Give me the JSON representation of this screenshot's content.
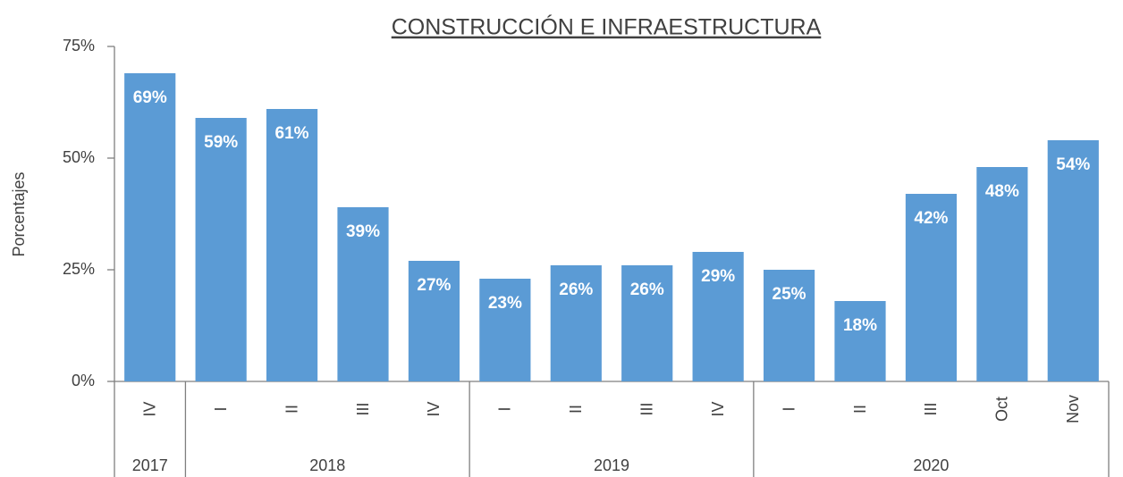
{
  "chart_data": {
    "type": "bar",
    "title": "CONSTRUCCIÓN E INFRAESTRUCTURA",
    "y_label": "Porcentajes",
    "categories": [
      "IV",
      "I",
      "II",
      "III",
      "IV",
      "I",
      "II",
      "III",
      "IV",
      "I",
      "II",
      "III",
      "Oct",
      "Nov"
    ],
    "groups": [
      {
        "name": "2017",
        "size": 1
      },
      {
        "name": "2018",
        "size": 4
      },
      {
        "name": "2019",
        "size": 4
      },
      {
        "name": "2020",
        "size": 5
      }
    ],
    "values": [
      69,
      59,
      61,
      39,
      27,
      23,
      26,
      26,
      29,
      25,
      18,
      42,
      48,
      54
    ],
    "value_labels": [
      "69%",
      "59%",
      "61%",
      "39%",
      "27%",
      "23%",
      "26%",
      "26%",
      "29%",
      "25%",
      "18%",
      "42%",
      "48%",
      "54%"
    ],
    "color": "#5b9bd5",
    "ylim": [
      0,
      75
    ],
    "yticks": [
      {
        "value": 0,
        "label": "0%"
      },
      {
        "value": 25,
        "label": "25%"
      },
      {
        "value": 50,
        "label": "50%"
      },
      {
        "value": 75,
        "label": "75%"
      }
    ],
    "grid": false
  }
}
